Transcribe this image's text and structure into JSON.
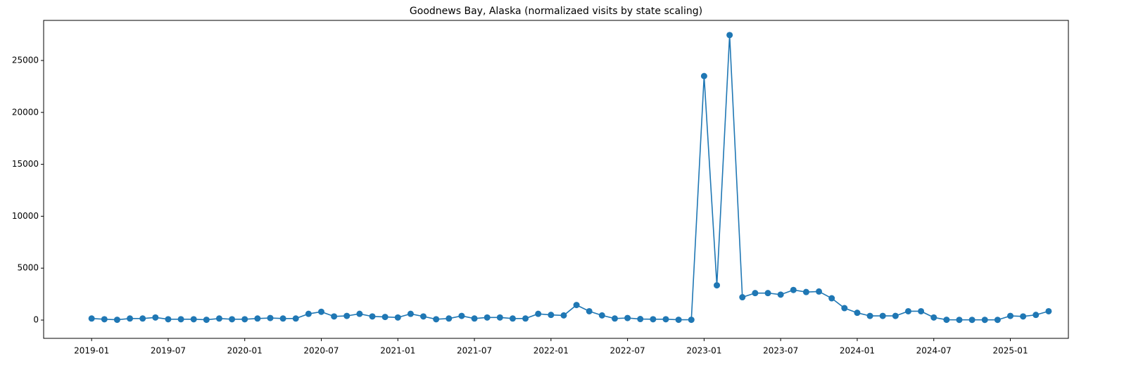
{
  "chart_data": {
    "type": "line",
    "title": "Goodnews Bay, Alaska (normalizaed visits by state scaling)",
    "x": [
      "2019-01",
      "2019-02",
      "2019-03",
      "2019-04",
      "2019-05",
      "2019-06",
      "2019-07",
      "2019-08",
      "2019-09",
      "2019-10",
      "2019-11",
      "2019-12",
      "2020-01",
      "2020-02",
      "2020-03",
      "2020-04",
      "2020-05",
      "2020-06",
      "2020-07",
      "2020-08",
      "2020-09",
      "2020-10",
      "2020-11",
      "2020-12",
      "2021-01",
      "2021-02",
      "2021-03",
      "2021-04",
      "2021-05",
      "2021-06",
      "2021-07",
      "2021-08",
      "2021-09",
      "2021-10",
      "2021-11",
      "2021-12",
      "2022-01",
      "2022-02",
      "2022-03",
      "2022-04",
      "2022-05",
      "2022-06",
      "2022-07",
      "2022-08",
      "2022-09",
      "2022-10",
      "2022-11",
      "2022-12",
      "2023-01",
      "2023-02",
      "2023-03",
      "2023-04",
      "2023-05",
      "2023-06",
      "2023-07",
      "2023-08",
      "2023-09",
      "2023-10",
      "2023-11",
      "2023-12",
      "2024-01",
      "2024-02",
      "2024-03",
      "2024-04",
      "2024-05",
      "2024-06",
      "2024-07",
      "2024-08",
      "2024-09",
      "2024-10",
      "2024-11",
      "2024-12",
      "2025-01",
      "2025-02",
      "2025-03",
      "2025-04"
    ],
    "series": [
      {
        "color": "#1f77b4",
        "values": [
          150,
          80,
          30,
          150,
          150,
          250,
          80,
          80,
          80,
          30,
          150,
          80,
          80,
          150,
          200,
          150,
          150,
          600,
          800,
          350,
          400,
          600,
          350,
          300,
          250,
          600,
          350,
          80,
          150,
          400,
          150,
          250,
          250,
          150,
          150,
          600,
          500,
          450,
          1450,
          850,
          450,
          150,
          200,
          100,
          80,
          80,
          30,
          30,
          23500,
          3350,
          27450,
          2200,
          2600,
          2600,
          2450,
          2900,
          2700,
          2750,
          2100,
          1150,
          700,
          400,
          400,
          400,
          850,
          850,
          250,
          30,
          20,
          20,
          20,
          20,
          400,
          350,
          500,
          850
        ]
      }
    ],
    "xticks": [
      "2019-01",
      "2019-07",
      "2020-01",
      "2020-07",
      "2021-01",
      "2021-07",
      "2022-01",
      "2022-07",
      "2023-01",
      "2023-07",
      "2024-01",
      "2024-07",
      "2025-01"
    ],
    "ylim": [
      -1760,
      28860
    ],
    "yticks": [
      0,
      5000,
      10000,
      15000,
      20000,
      25000
    ]
  }
}
